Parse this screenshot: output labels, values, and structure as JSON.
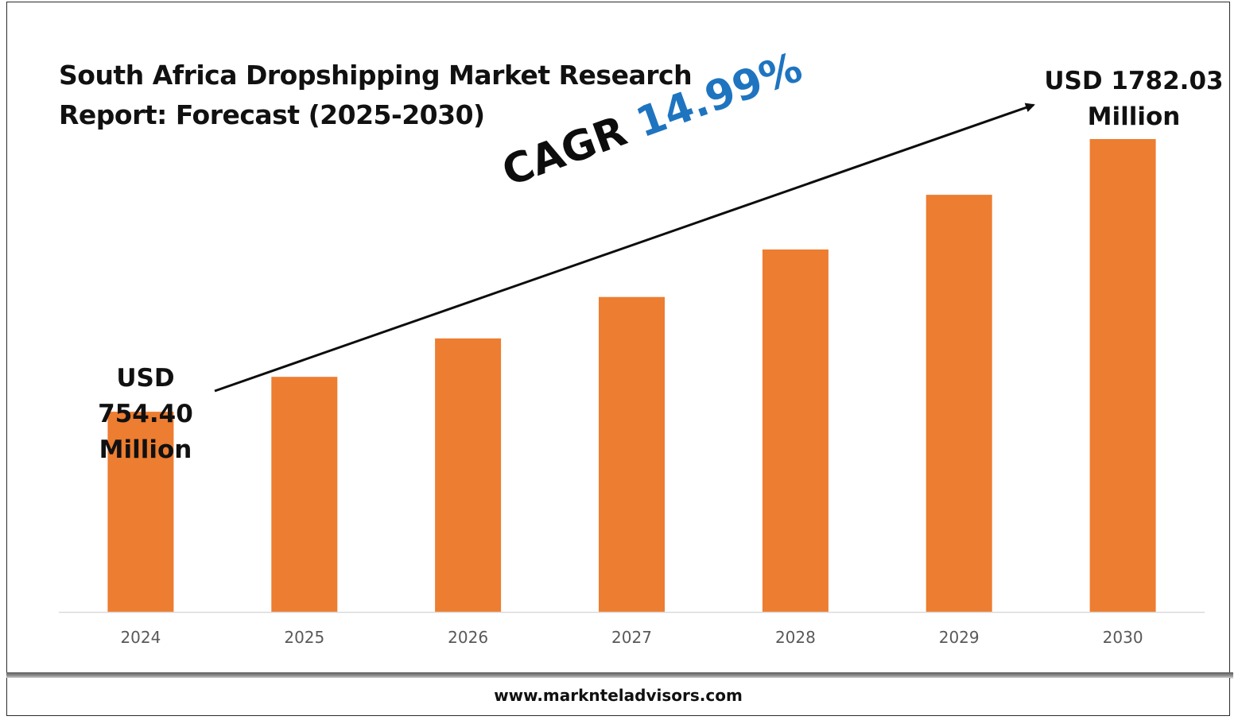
{
  "title": "South Africa Dropshipping Market Research Report: Forecast (2025-2030)",
  "colors": {
    "bar": "#ED7D31",
    "cagr_value": "#1F74C0",
    "axis": "#D9D9D9",
    "tick_label": "#595959"
  },
  "callouts": {
    "start": {
      "line1": "USD",
      "line2": "754.40",
      "line3": "Million"
    },
    "end": {
      "line1": "USD 1782.03",
      "line2": "Million"
    }
  },
  "cagr": {
    "label": "CAGR",
    "value": "14.99%"
  },
  "footer": {
    "url": "www.marknteladvisors.com"
  },
  "chart_data": {
    "type": "bar",
    "categories": [
      "2024",
      "2025",
      "2026",
      "2027",
      "2028",
      "2029",
      "2030"
    ],
    "values": [
      754.4,
      886,
      1031,
      1187,
      1366,
      1572,
      1782.03
    ],
    "ylim": [
      0,
      1782.03
    ],
    "grid": false,
    "legend": "none",
    "xlabel": "",
    "ylabel": ""
  }
}
